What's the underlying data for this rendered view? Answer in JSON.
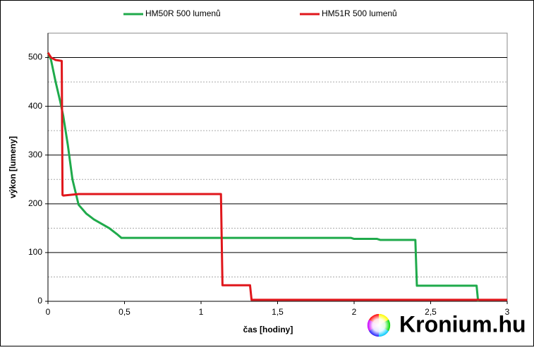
{
  "chart_data": {
    "type": "line",
    "xlabel": "čas [hodiny]",
    "ylabel": "výkon [lumeny]",
    "watermark": "Kronium.hu",
    "xlim": [
      0,
      3
    ],
    "ylim": [
      0,
      550
    ],
    "xticks": [
      0,
      {
        "value": 0.5,
        "label": "0,5"
      },
      1,
      {
        "value": 1.5,
        "label": "1,5"
      },
      2,
      {
        "value": 2.5,
        "label": "2,5"
      },
      3
    ],
    "yticks": [
      0,
      100,
      200,
      300,
      400,
      500
    ],
    "minor_yticks": [
      50,
      150,
      250,
      350,
      450
    ],
    "grid": true,
    "legend": "top",
    "series": [
      {
        "name": "HM50R 500 lumenů",
        "color": "#1faa4b",
        "x": [
          0,
          0.02,
          0.05,
          0.08,
          0.1,
          0.13,
          0.16,
          0.2,
          0.25,
          0.3,
          0.4,
          0.45,
          0.48,
          0.5,
          1.0,
          1.5,
          1.98,
          2.0,
          2.15,
          2.17,
          2.4,
          2.41,
          2.8,
          2.81
        ],
        "values": [
          510,
          495,
          450,
          410,
          380,
          320,
          250,
          198,
          180,
          168,
          150,
          138,
          130,
          130,
          130,
          130,
          130,
          128,
          128,
          126,
          126,
          32,
          32,
          0
        ]
      },
      {
        "name": "HM51R 500 lumenů",
        "color": "#e0161b",
        "x": [
          0,
          0.02,
          0.05,
          0.09,
          0.095,
          0.1,
          0.2,
          0.25,
          1.13,
          1.14,
          1.32,
          1.33,
          3.0
        ],
        "values": [
          510,
          500,
          495,
          493,
          218,
          217,
          220,
          220,
          220,
          33,
          33,
          3,
          3
        ]
      }
    ]
  }
}
